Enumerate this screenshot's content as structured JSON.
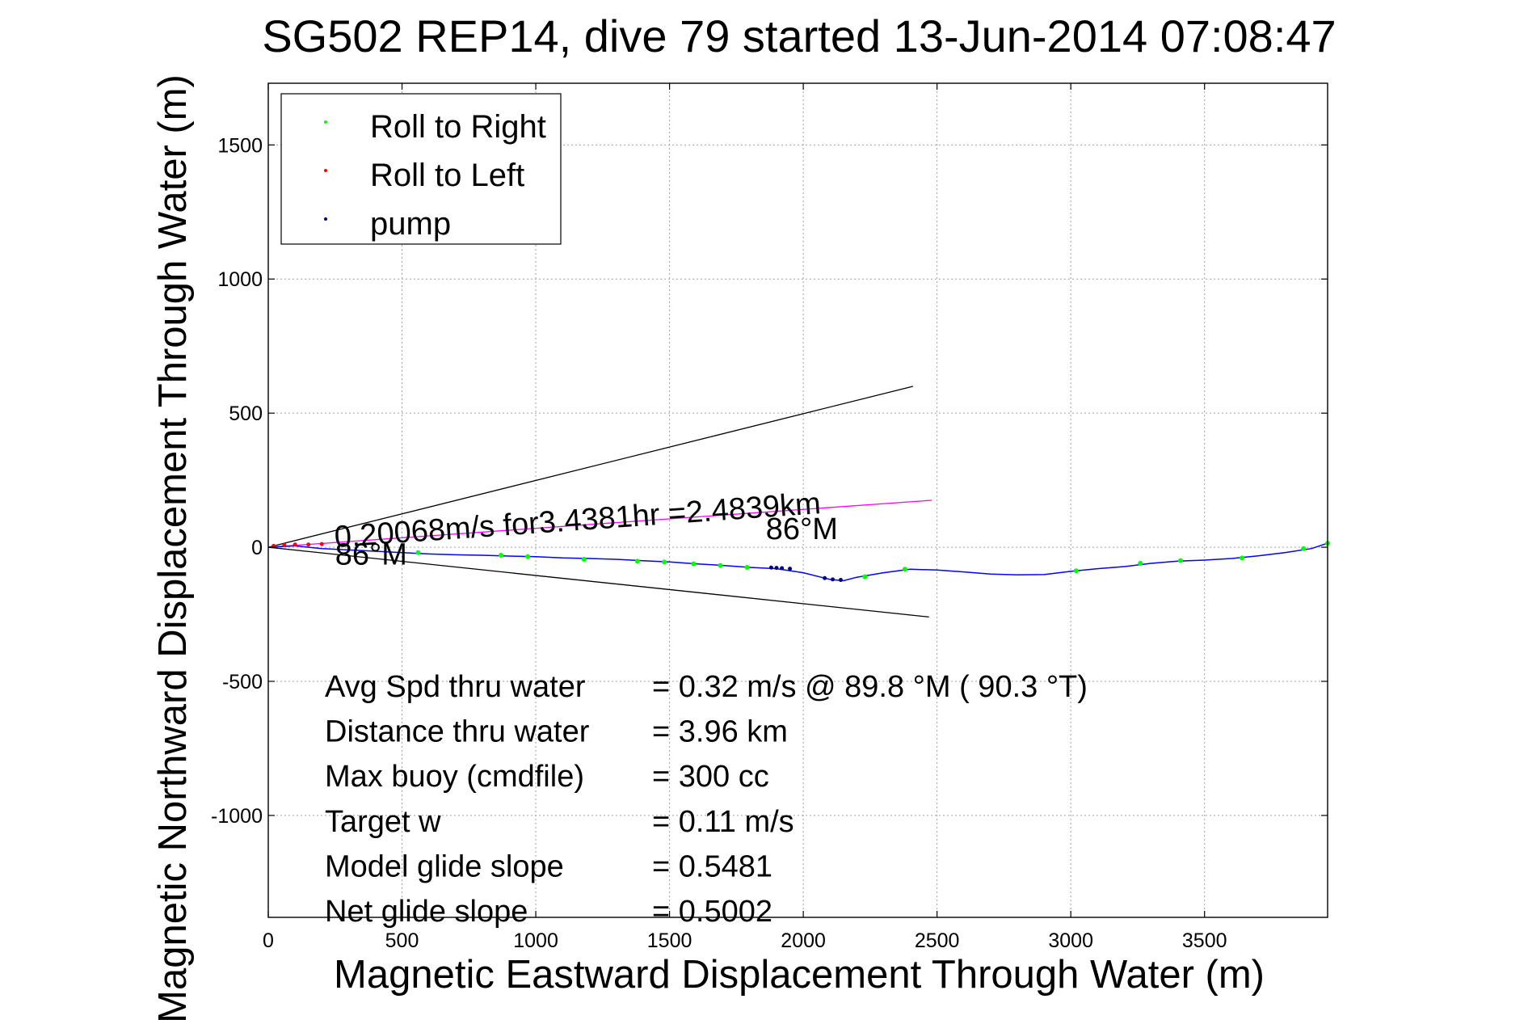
{
  "chart_data": {
    "type": "line",
    "title": "SG502 REP14, dive 79 started 13-Jun-2014 07:08:47",
    "xlabel": "Magnetic Eastward Displacement Through Water (m)",
    "ylabel": "Magnetic Northward Displacement Through Water (m)",
    "xlim": [
      0,
      3960
    ],
    "ylim": [
      -1380,
      1730
    ],
    "xticks": [
      0,
      500,
      1000,
      1500,
      2000,
      2500,
      3000,
      3500
    ],
    "yticks": [
      -1000,
      -500,
      0,
      500,
      1000,
      1500
    ],
    "grid": true,
    "legend_position": "top-left",
    "legend": [
      {
        "label": "Roll to Right",
        "color": "#00ff00"
      },
      {
        "label": "Roll to Left",
        "color": "#ff0000"
      },
      {
        "label": "pump",
        "color": "#000080"
      }
    ],
    "track": {
      "color": "#0000ff",
      "points": [
        [
          0,
          0
        ],
        [
          100,
          5
        ],
        [
          200,
          -5
        ],
        [
          300,
          -10
        ],
        [
          400,
          -15
        ],
        [
          500,
          -20
        ],
        [
          600,
          -25
        ],
        [
          700,
          -28
        ],
        [
          800,
          -30
        ],
        [
          900,
          -33
        ],
        [
          1000,
          -35
        ],
        [
          1100,
          -40
        ],
        [
          1200,
          -42
        ],
        [
          1300,
          -45
        ],
        [
          1400,
          -50
        ],
        [
          1500,
          -55
        ],
        [
          1600,
          -62
        ],
        [
          1700,
          -68
        ],
        [
          1800,
          -75
        ],
        [
          1900,
          -80
        ],
        [
          2000,
          -95
        ],
        [
          2100,
          -120
        ],
        [
          2150,
          -125
        ],
        [
          2200,
          -112
        ],
        [
          2300,
          -95
        ],
        [
          2400,
          -82
        ],
        [
          2500,
          -85
        ],
        [
          2600,
          -92
        ],
        [
          2700,
          -100
        ],
        [
          2800,
          -103
        ],
        [
          2900,
          -102
        ],
        [
          3000,
          -90
        ],
        [
          3100,
          -80
        ],
        [
          3200,
          -72
        ],
        [
          3300,
          -60
        ],
        [
          3400,
          -52
        ],
        [
          3500,
          -48
        ],
        [
          3600,
          -42
        ],
        [
          3700,
          -32
        ],
        [
          3800,
          -20
        ],
        [
          3900,
          -5
        ],
        [
          3960,
          15
        ]
      ]
    },
    "roll_right_points": [
      [
        560,
        -20
      ],
      [
        870,
        -30
      ],
      [
        970,
        -35
      ],
      [
        1180,
        -45
      ],
      [
        1380,
        -52
      ],
      [
        1480,
        -55
      ],
      [
        1590,
        -62
      ],
      [
        1690,
        -68
      ],
      [
        1790,
        -75
      ],
      [
        2230,
        -110
      ],
      [
        2380,
        -82
      ],
      [
        3020,
        -88
      ],
      [
        3260,
        -60
      ],
      [
        3410,
        -50
      ],
      [
        3640,
        -40
      ],
      [
        3870,
        -5
      ],
      [
        3960,
        15
      ]
    ],
    "roll_left_points": [
      [
        20,
        5
      ],
      [
        60,
        8
      ],
      [
        100,
        10
      ],
      [
        150,
        10
      ],
      [
        200,
        12
      ]
    ],
    "pump_points": [
      [
        1880,
        -76
      ],
      [
        1900,
        -77
      ],
      [
        1920,
        -78
      ],
      [
        1950,
        -80
      ],
      [
        2080,
        -115
      ],
      [
        2110,
        -120
      ],
      [
        2140,
        -122
      ]
    ],
    "heading_lines": [
      {
        "from": [
          0,
          0
        ],
        "to": [
          2410,
          600
        ],
        "color": "#000000"
      },
      {
        "from": [
          0,
          0
        ],
        "to": [
          2470,
          -260
        ],
        "color": "#000000"
      },
      {
        "from": [
          0,
          0
        ],
        "to": [
          2480,
          175
        ],
        "color": "#ff00ff"
      }
    ],
    "annotations": [
      {
        "text": "0.20068m/s for3.4381hr =2.4839km",
        "x": 250,
        "y": 0,
        "angle_deg": -4
      },
      {
        "text": "86°M",
        "x": 1860,
        "y": 30,
        "angle_deg": 0
      },
      {
        "text": "86°M",
        "x": 250,
        "y": -65,
        "angle_deg": 0
      }
    ],
    "stats": [
      {
        "label": "Avg Spd thru water",
        "value": "=  0.32 m/s @  89.8 °M ( 90.3 °T)"
      },
      {
        "label": "Distance thru water",
        "value": "=  3.96 km"
      },
      {
        "label": "Max buoy (cmdfile)",
        "value": "= 300 cc"
      },
      {
        "label": "Target w",
        "value": "= 0.11 m/s"
      },
      {
        "label": "Model glide slope",
        "value": "= 0.5481"
      },
      {
        "label": "Net glide slope",
        "value": "= 0.5002"
      }
    ]
  }
}
